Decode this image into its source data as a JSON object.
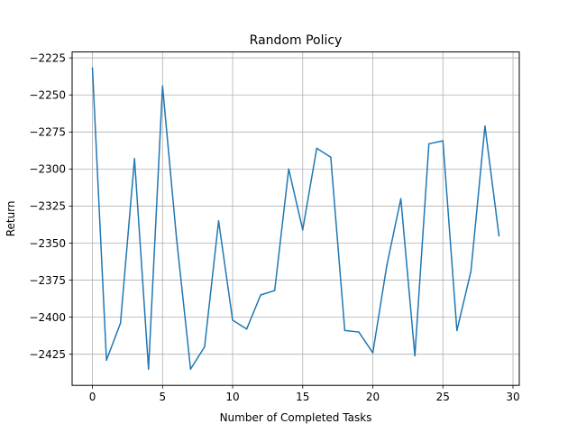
{
  "chart_data": {
    "type": "line",
    "title": "Random Policy",
    "xlabel": "Number of Completed Tasks",
    "ylabel": "Return",
    "xlim": [
      -1.45,
      30.45
    ],
    "ylim": [
      -2446,
      -2221
    ],
    "xticks": [
      0,
      5,
      10,
      15,
      20,
      25,
      30
    ],
    "yticks": [
      -2425,
      -2400,
      -2375,
      -2350,
      -2325,
      -2300,
      -2275,
      -2250,
      -2225
    ],
    "grid": true,
    "legend": false,
    "series": [
      {
        "color": "#1f77b4",
        "x": [
          0,
          1,
          2,
          3,
          4,
          5,
          6,
          7,
          8,
          9,
          10,
          11,
          12,
          13,
          14,
          15,
          16,
          17,
          18,
          19,
          20,
          21,
          22,
          23,
          24,
          25,
          26,
          27,
          28,
          29
        ],
        "y": [
          -2232,
          -2429,
          -2404,
          -2293,
          -2435,
          -2244,
          -2347,
          -2435,
          -2420,
          -2335,
          -2402,
          -2408,
          -2385,
          -2382,
          -2300,
          -2341,
          -2286,
          -2292,
          -2409,
          -2410,
          -2424,
          -2365,
          -2320,
          -2426,
          -2283,
          -2281,
          -2409,
          -2369,
          -2271,
          -2345
        ]
      }
    ]
  }
}
